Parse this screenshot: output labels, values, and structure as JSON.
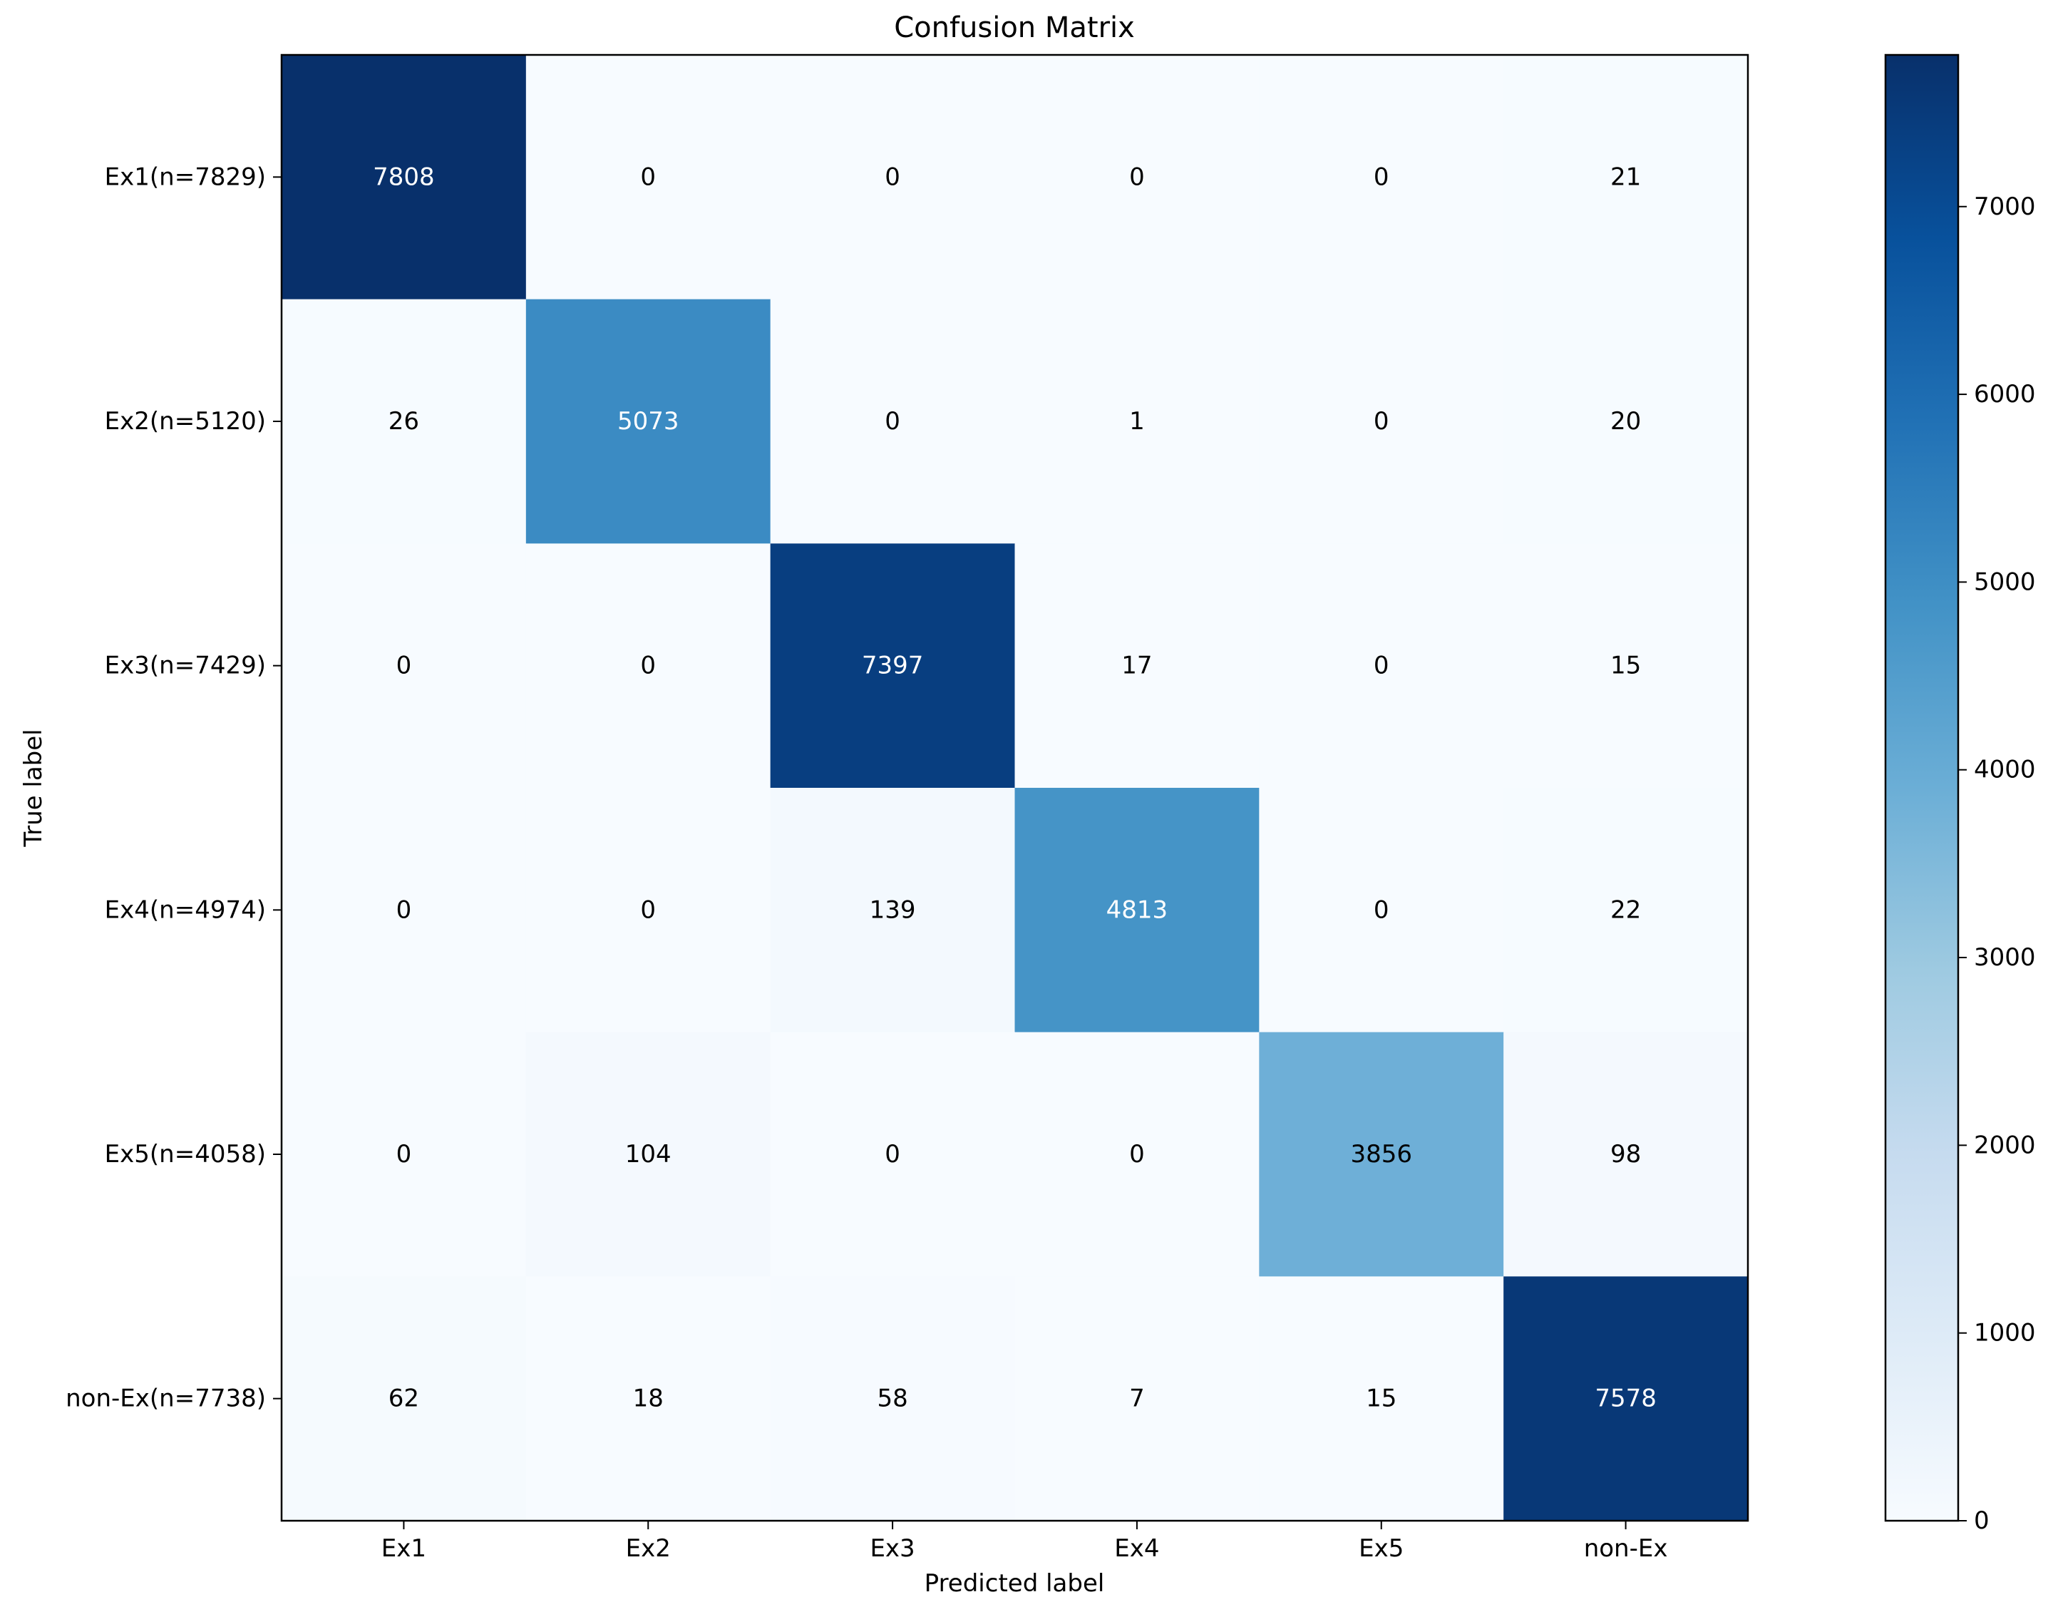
{
  "chart_data": {
    "type": "heatmap",
    "title": "Confusion Matrix",
    "xlabel": "Predicted label",
    "ylabel": "True label",
    "x_categories": [
      "Ex1",
      "Ex2",
      "Ex3",
      "Ex4",
      "Ex5",
      "non-Ex"
    ],
    "y_categories": [
      "Ex1(n=7829)",
      "Ex2(n=5120)",
      "Ex3(n=7429)",
      "Ex4(n=4974)",
      "Ex5(n=4058)",
      "non-Ex(n=7738)"
    ],
    "values": [
      [
        7808,
        0,
        0,
        0,
        0,
        21
      ],
      [
        26,
        5073,
        0,
        1,
        0,
        20
      ],
      [
        0,
        0,
        7397,
        17,
        0,
        15
      ],
      [
        0,
        0,
        139,
        4813,
        0,
        22
      ],
      [
        0,
        104,
        0,
        0,
        3856,
        98
      ],
      [
        62,
        18,
        58,
        7,
        15,
        7578
      ]
    ],
    "colorbar": {
      "colormap": "Blues",
      "range": [
        0,
        7808
      ],
      "ticks": [
        0,
        1000,
        2000,
        3000,
        4000,
        5000,
        6000,
        7000
      ]
    },
    "grid": false
  }
}
